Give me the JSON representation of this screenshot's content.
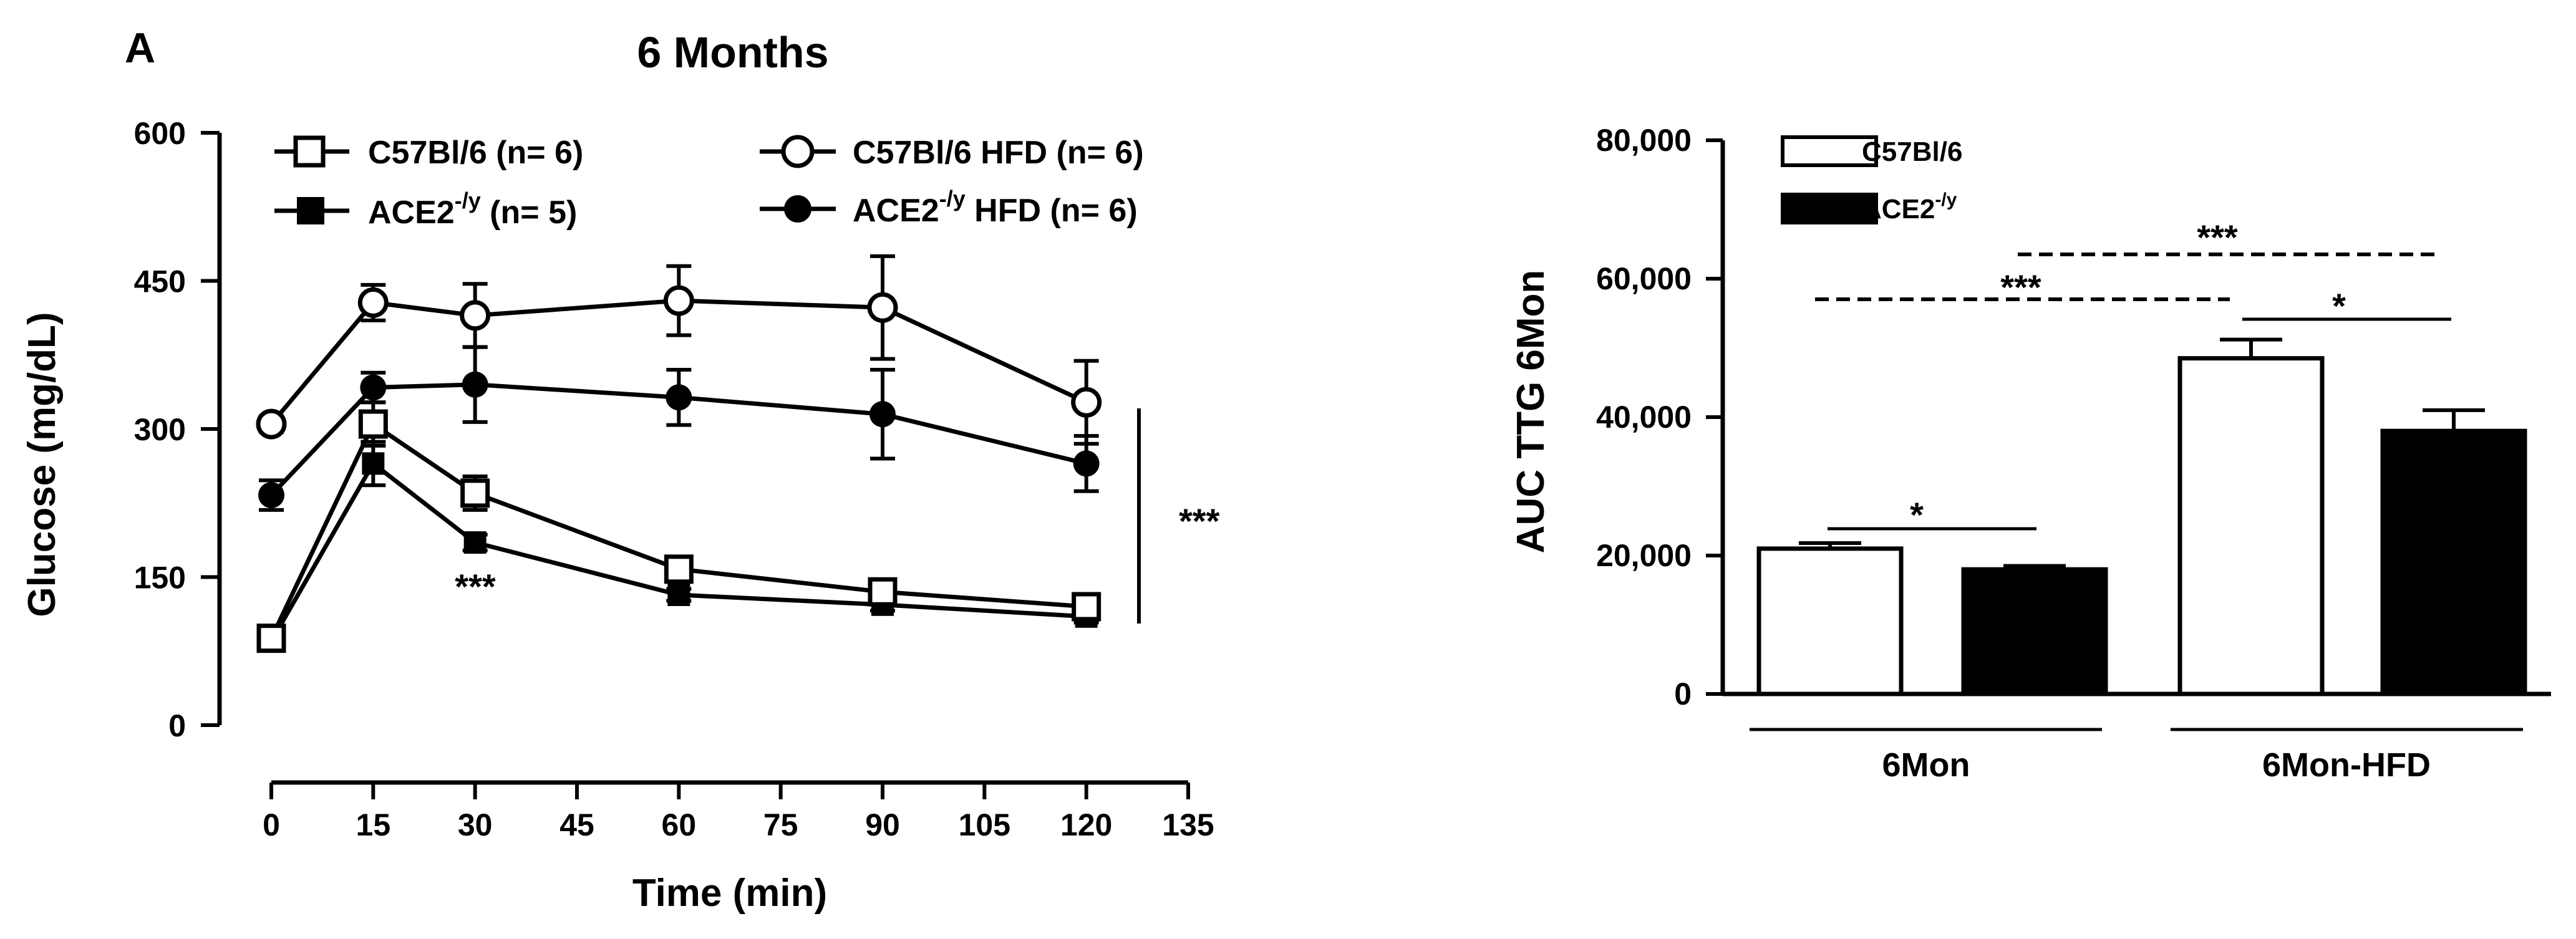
{
  "panel_label": "A",
  "chart_data": [
    {
      "type": "line",
      "title": "6 Months",
      "xlabel": "Time (min)",
      "ylabel": "Glucose (mg/dL)",
      "xlim": [
        0,
        135
      ],
      "ylim": [
        0,
        600
      ],
      "xticks": [
        "0",
        "15",
        "30",
        "45",
        "60",
        "75",
        "90",
        "105",
        "120",
        "135"
      ],
      "yticks": [
        "0",
        "150",
        "300",
        "450",
        "600"
      ],
      "grid": false,
      "legend_position": "top",
      "x": [
        0,
        15,
        30,
        60,
        90,
        120
      ],
      "series": [
        {
          "name": "C57Bl/6 (n= 6)",
          "marker": "open-square",
          "values": [
            88,
            305,
            235,
            158,
            135,
            120
          ],
          "errors": [
            8,
            22,
            17,
            8,
            7,
            8
          ]
        },
        {
          "name": "ACE2",
          "name_sup": "-/y",
          "name_rest": " (n= 5)",
          "marker": "filled-square",
          "values": [
            85,
            265,
            185,
            132,
            122,
            110
          ],
          "errors": [
            7,
            22,
            8,
            6,
            6,
            6
          ]
        },
        {
          "name": "C57Bl/6 HFD (n= 6)",
          "marker": "open-circle",
          "values": [
            305,
            428,
            415,
            430,
            423,
            327
          ],
          "errors": [
            8,
            18,
            32,
            35,
            52,
            42
          ]
        },
        {
          "name": "ACE2",
          "name_sup": "-/y",
          "name_rest": " HFD (n= 6)",
          "marker": "filled-circle",
          "values": [
            233,
            342,
            345,
            332,
            315,
            265
          ],
          "errors": [
            15,
            15,
            38,
            28,
            45,
            28
          ]
        }
      ],
      "annotations": [
        {
          "text": "***",
          "at_x": 30,
          "at_y": 145
        },
        {
          "text": "***",
          "bracket_y_range": [
            105,
            330
          ],
          "position": "right"
        }
      ]
    },
    {
      "type": "bar",
      "ylabel": "AUC TTG 6Mon",
      "ylim": [
        0,
        80000
      ],
      "yticks": [
        "0",
        "20,000",
        "40,000",
        "60,000",
        "80,000"
      ],
      "grid": false,
      "legend_position": "top-left",
      "groups": [
        "6Mon",
        "6Mon-HFD"
      ],
      "series": [
        {
          "name": "C57Bl/6",
          "color": "#ffffff",
          "values": [
            21000,
            48500
          ],
          "errors": [
            800,
            2700
          ]
        },
        {
          "name": "ACE2",
          "name_sup": "-/y",
          "color": "#000000",
          "values": [
            18000,
            38000
          ],
          "errors": [
            500,
            3000
          ]
        }
      ],
      "annotations": [
        {
          "text": "*",
          "between": "6Mon C57Bl/6 vs ACE2-/y"
        },
        {
          "text": "*",
          "between": "6Mon-HFD C57Bl/6 vs ACE2-/y"
        },
        {
          "text": "***",
          "between": "C57Bl/6 6Mon vs 6Mon-HFD",
          "style": "dashed"
        },
        {
          "text": "***",
          "between": "ACE2-/y 6Mon vs 6Mon-HFD",
          "style": "dashed"
        }
      ]
    }
  ]
}
